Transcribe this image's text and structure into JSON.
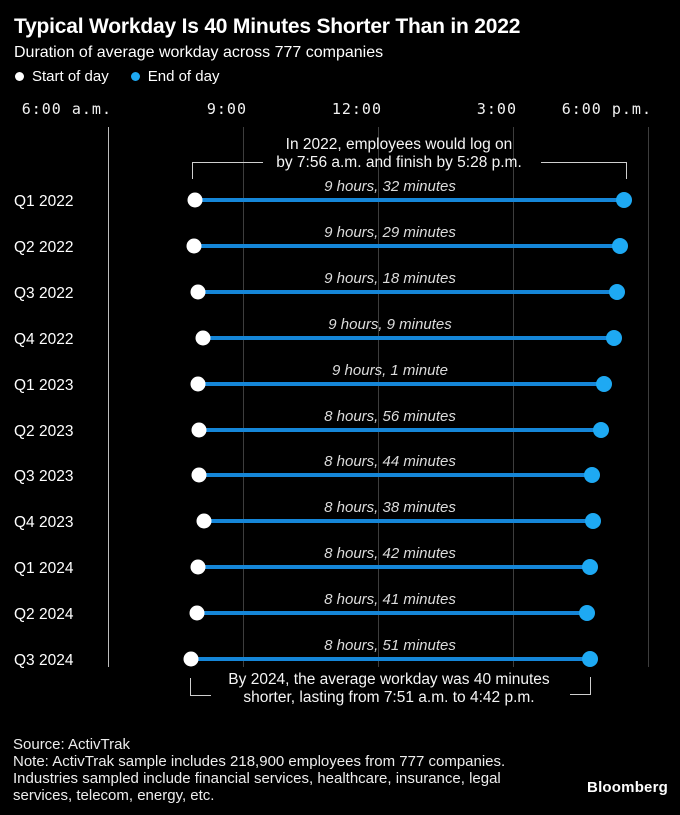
{
  "header": {
    "title": "Typical Workday Is 40 Minutes Shorter Than in 2022",
    "subtitle": "Duration of average workday across 777 companies"
  },
  "legend": {
    "items": [
      {
        "label": "Start of day",
        "color": "#ffffff"
      },
      {
        "label": "End of day",
        "color": "#1ea9f3"
      }
    ]
  },
  "chart_data": {
    "type": "dumbbell",
    "x_axis": {
      "unit": "time of day",
      "domain_hours": [
        6,
        18
      ],
      "grid": true,
      "ticks": [
        {
          "hour": 6,
          "label": "6:00 a.m."
        },
        {
          "hour": 9,
          "label": "9:00"
        },
        {
          "hour": 12,
          "label": "12:00"
        },
        {
          "hour": 15,
          "label": "3:00"
        },
        {
          "hour": 18,
          "label": "6:00 p.m."
        }
      ]
    },
    "series_labels": {
      "start": "Start of day",
      "end": "End of day"
    },
    "rows": [
      {
        "category": "Q1 2022",
        "start_hour": 7.93,
        "end_hour": 17.47,
        "duration_label": "9 hours, 32 minutes"
      },
      {
        "category": "Q2 2022",
        "start_hour": 7.9,
        "end_hour": 17.38,
        "duration_label": "9 hours, 29 minutes"
      },
      {
        "category": "Q3 2022",
        "start_hour": 8.0,
        "end_hour": 17.3,
        "duration_label": "9 hours, 18 minutes"
      },
      {
        "category": "Q4 2022",
        "start_hour": 8.1,
        "end_hour": 17.25,
        "duration_label": "9 hours, 9 minutes"
      },
      {
        "category": "Q1 2023",
        "start_hour": 8.0,
        "end_hour": 17.02,
        "duration_label": "9 hours, 1 minute"
      },
      {
        "category": "Q2 2023",
        "start_hour": 8.02,
        "end_hour": 16.95,
        "duration_label": "8 hours, 56 minutes"
      },
      {
        "category": "Q3 2023",
        "start_hour": 8.02,
        "end_hour": 16.75,
        "duration_label": "8 hours, 44 minutes"
      },
      {
        "category": "Q4 2023",
        "start_hour": 8.13,
        "end_hour": 16.77,
        "duration_label": "8 hours, 38 minutes"
      },
      {
        "category": "Q1 2024",
        "start_hour": 8.0,
        "end_hour": 16.7,
        "duration_label": "8 hours, 42 minutes"
      },
      {
        "category": "Q2 2024",
        "start_hour": 7.97,
        "end_hour": 16.65,
        "duration_label": "8 hours, 41 minutes"
      },
      {
        "category": "Q3 2024",
        "start_hour": 7.85,
        "end_hour": 16.7,
        "duration_label": "8 hours, 51 minutes"
      }
    ],
    "annotations": [
      {
        "id": "top",
        "lines": [
          "In 2022, employees would log on",
          "by 7:56 a.m. and finish by 5:28 p.m."
        ]
      },
      {
        "id": "bottom",
        "lines": [
          "By 2024, the average workday was 40 minutes",
          "shorter, lasting from 7:51 a.m. to 4:42 p.m."
        ]
      }
    ]
  },
  "colors": {
    "background": "#000000",
    "start_dot": "#ffffff",
    "end_dot": "#1ea9f3",
    "bar_line": "#1586d8",
    "grid_minor": "#3d3d3d",
    "grid_axis": "#bdbdbd"
  },
  "footer": {
    "source": "Source: ActivTrak",
    "note_lines": [
      "Note: ActivTrak sample includes 218,900 employees from 777 companies.",
      "Industries sampled include financial services, healthcare, insurance, legal",
      "services, telecom, energy, etc."
    ],
    "brand": "Bloomberg"
  }
}
